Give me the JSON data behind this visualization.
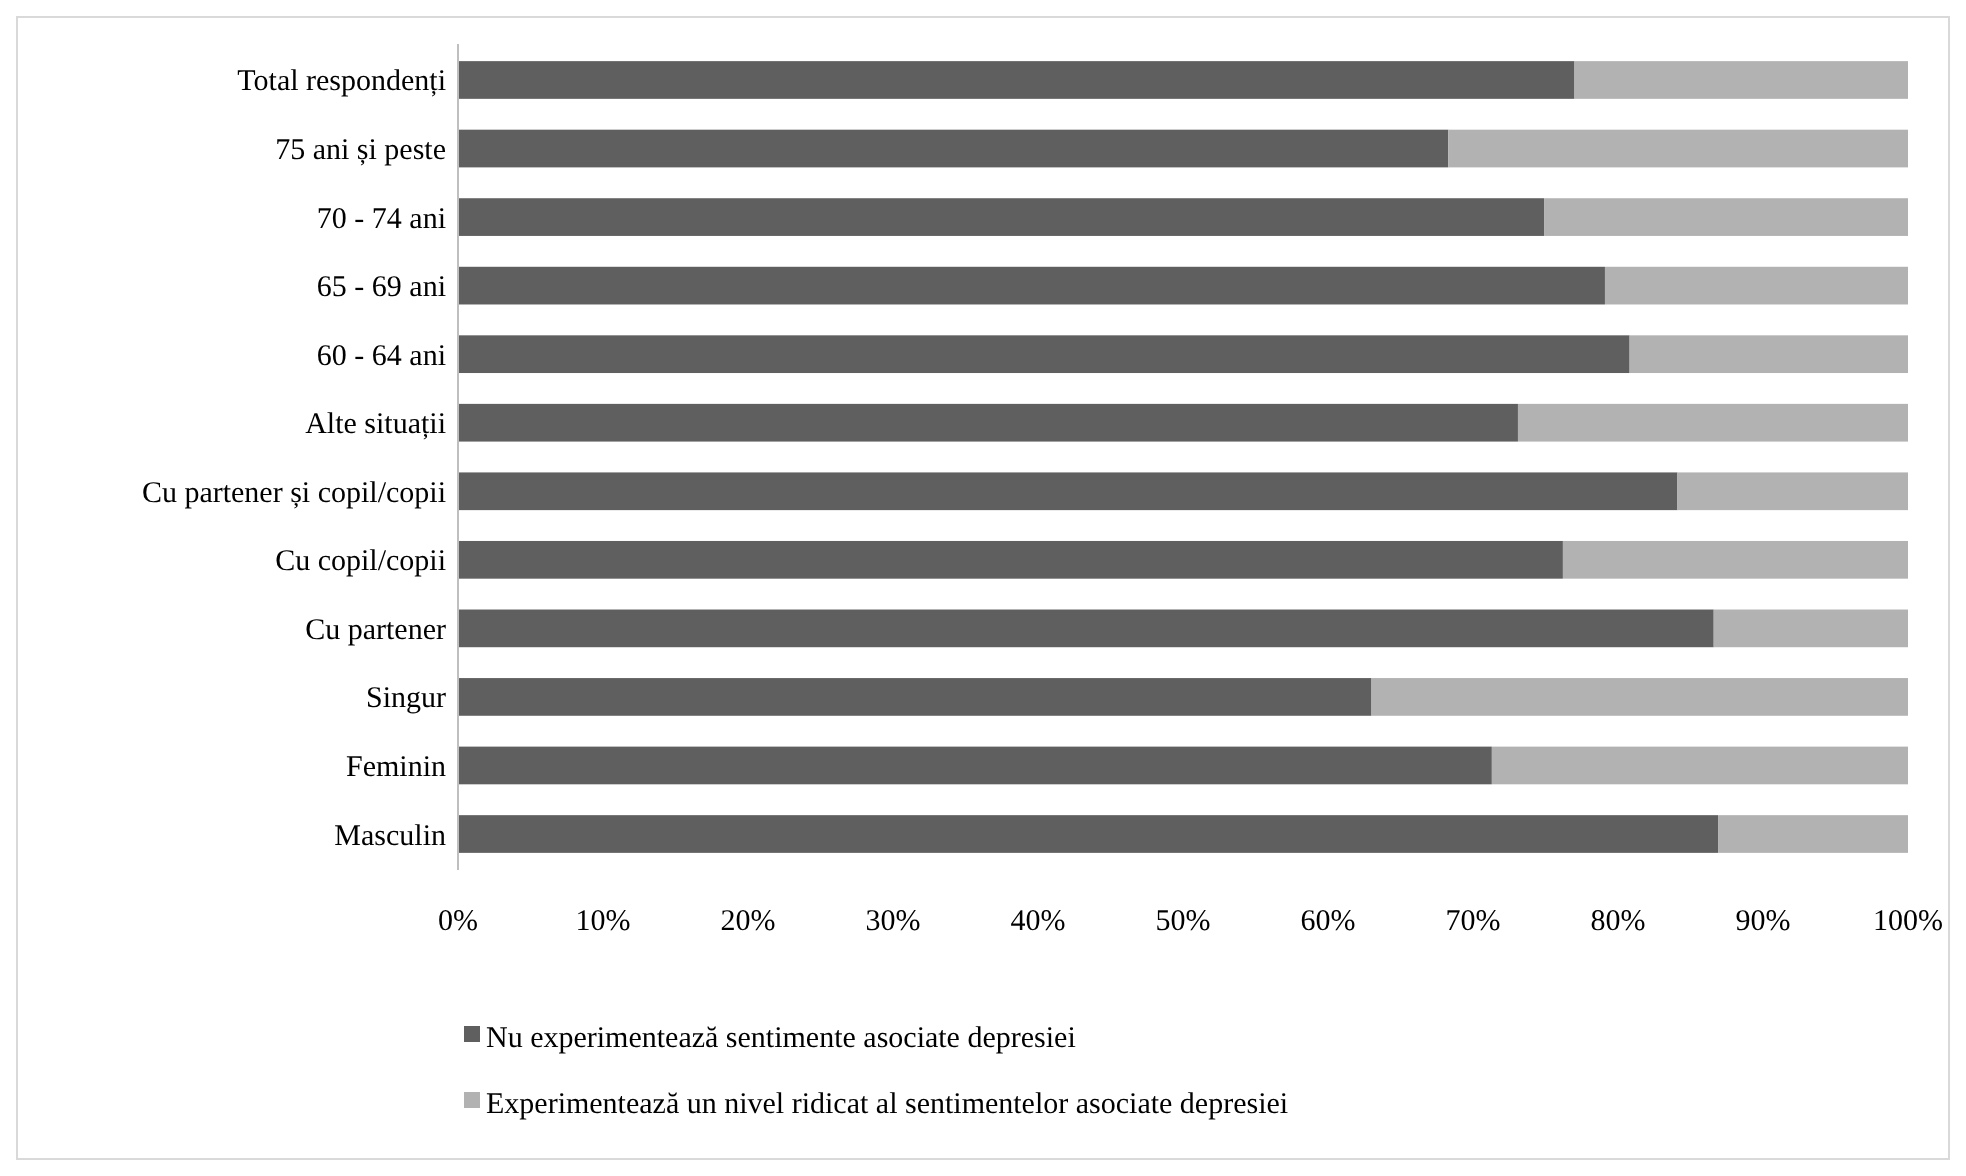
{
  "chart_data": {
    "type": "bar",
    "orientation": "horizontal",
    "stacked": true,
    "categories": [
      "Total respondenți",
      "75 ani și peste",
      "70 - 74 ani",
      "65 - 69 ani",
      "60 - 64 ani",
      "Alte situații",
      "Cu partener și copil/copii",
      "Cu copil/copii",
      "Cu partener",
      "Singur",
      "Feminin",
      "Masculin"
    ],
    "series": [
      {
        "name": "Nu experimentează sentimente asociate depresiei",
        "color": "#5f5f5f",
        "values": [
          77.0,
          68.3,
          74.9,
          79.1,
          80.8,
          73.1,
          84.1,
          76.2,
          86.6,
          63.0,
          71.3,
          86.9
        ]
      },
      {
        "name": "Experimentează un nivel ridicat al sentimentelor asociate depresiei",
        "color": "#b2b2b2",
        "values": [
          23.0,
          31.7,
          25.1,
          20.9,
          19.2,
          26.9,
          15.9,
          23.8,
          13.4,
          37.0,
          28.7,
          13.1
        ]
      }
    ],
    "xlim": [
      0,
      100
    ],
    "xticks": [
      {
        "value": 0,
        "label": "0%"
      },
      {
        "value": 10,
        "label": "10%"
      },
      {
        "value": 20,
        "label": "20%"
      },
      {
        "value": 30,
        "label": "30%"
      },
      {
        "value": 40,
        "label": "40%"
      },
      {
        "value": 50,
        "label": "50%"
      },
      {
        "value": 60,
        "label": "60%"
      },
      {
        "value": 70,
        "label": "70%"
      },
      {
        "value": 80,
        "label": "80%"
      },
      {
        "value": 90,
        "label": "90%"
      },
      {
        "value": 100,
        "label": "100%"
      }
    ],
    "grid": false,
    "legend": "bottom"
  }
}
